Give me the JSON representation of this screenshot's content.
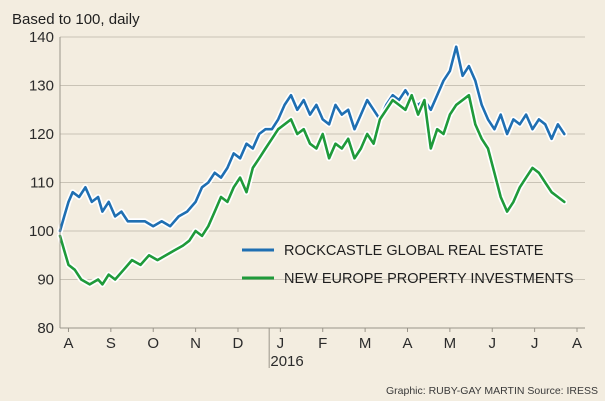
{
  "chart_data": {
    "type": "line",
    "subtitle": "Based to 100, daily",
    "yticks": [
      80,
      90,
      100,
      110,
      120,
      130,
      140
    ],
    "ylim": [
      80,
      140
    ],
    "xlim": [
      0,
      12.2
    ],
    "grid": true,
    "month_labels": [
      {
        "label": "A",
        "x": 0.2
      },
      {
        "label": "S",
        "x": 1.2
      },
      {
        "label": "O",
        "x": 2.2
      },
      {
        "label": "N",
        "x": 3.2
      },
      {
        "label": "D",
        "x": 4.2
      },
      {
        "label": "J",
        "x": 5.2
      },
      {
        "label": "F",
        "x": 6.2
      },
      {
        "label": "M",
        "x": 7.2
      },
      {
        "label": "A",
        "x": 8.2
      },
      {
        "label": "M",
        "x": 9.2
      },
      {
        "label": "J",
        "x": 10.2
      },
      {
        "label": "J",
        "x": 11.2
      },
      {
        "label": "A",
        "x": 12.2
      }
    ],
    "year_label": "2016",
    "legend": {
      "placement": "bottom-right"
    },
    "series": [
      {
        "name": "ROCKCASTLE GLOBAL REAL ESTATE",
        "color": "#1f6fb2",
        "points": [
          [
            0.0,
            100
          ],
          [
            0.1,
            103
          ],
          [
            0.2,
            106
          ],
          [
            0.3,
            108
          ],
          [
            0.45,
            107
          ],
          [
            0.6,
            109
          ],
          [
            0.75,
            106
          ],
          [
            0.9,
            107
          ],
          [
            1.0,
            104
          ],
          [
            1.15,
            106
          ],
          [
            1.3,
            103
          ],
          [
            1.45,
            104
          ],
          [
            1.6,
            102
          ],
          [
            1.8,
            102
          ],
          [
            2.0,
            102
          ],
          [
            2.2,
            101
          ],
          [
            2.4,
            102
          ],
          [
            2.6,
            101
          ],
          [
            2.8,
            103
          ],
          [
            3.0,
            104
          ],
          [
            3.2,
            106
          ],
          [
            3.35,
            109
          ],
          [
            3.5,
            110
          ],
          [
            3.65,
            112
          ],
          [
            3.8,
            111
          ],
          [
            3.95,
            113
          ],
          [
            4.1,
            116
          ],
          [
            4.25,
            115
          ],
          [
            4.4,
            118
          ],
          [
            4.55,
            117
          ],
          [
            4.7,
            120
          ],
          [
            4.85,
            121
          ],
          [
            5.0,
            121
          ],
          [
            5.15,
            123
          ],
          [
            5.3,
            126
          ],
          [
            5.45,
            128
          ],
          [
            5.6,
            125
          ],
          [
            5.75,
            127
          ],
          [
            5.9,
            124
          ],
          [
            6.05,
            126
          ],
          [
            6.2,
            123
          ],
          [
            6.35,
            122
          ],
          [
            6.5,
            126
          ],
          [
            6.65,
            124
          ],
          [
            6.8,
            125
          ],
          [
            6.95,
            121
          ],
          [
            7.1,
            124
          ],
          [
            7.25,
            127
          ],
          [
            7.4,
            125
          ],
          [
            7.55,
            123
          ],
          [
            7.7,
            126
          ],
          [
            7.85,
            128
          ],
          [
            8.0,
            127
          ],
          [
            8.15,
            129
          ],
          [
            8.3,
            127
          ],
          [
            8.45,
            126
          ],
          [
            8.6,
            127
          ],
          [
            8.75,
            125
          ],
          [
            8.9,
            128
          ],
          [
            9.05,
            131
          ],
          [
            9.2,
            133
          ],
          [
            9.35,
            138
          ],
          [
            9.5,
            132
          ],
          [
            9.65,
            134
          ],
          [
            9.8,
            131
          ],
          [
            9.95,
            126
          ],
          [
            10.1,
            123
          ],
          [
            10.25,
            121
          ],
          [
            10.4,
            124
          ],
          [
            10.55,
            120
          ],
          [
            10.7,
            123
          ],
          [
            10.85,
            122
          ],
          [
            11.0,
            124
          ],
          [
            11.15,
            121
          ],
          [
            11.3,
            123
          ],
          [
            11.45,
            122
          ],
          [
            11.6,
            119
          ],
          [
            11.75,
            122
          ],
          [
            11.9,
            120
          ]
        ]
      },
      {
        "name": "NEW EUROPE PROPERTY INVESTMENTS",
        "color": "#1f9a3a",
        "points": [
          [
            0.0,
            99
          ],
          [
            0.1,
            96
          ],
          [
            0.2,
            93
          ],
          [
            0.35,
            92
          ],
          [
            0.5,
            90
          ],
          [
            0.7,
            89
          ],
          [
            0.9,
            90
          ],
          [
            1.0,
            89
          ],
          [
            1.15,
            91
          ],
          [
            1.3,
            90
          ],
          [
            1.5,
            92
          ],
          [
            1.7,
            94
          ],
          [
            1.9,
            93
          ],
          [
            2.1,
            95
          ],
          [
            2.3,
            94
          ],
          [
            2.5,
            95
          ],
          [
            2.7,
            96
          ],
          [
            2.9,
            97
          ],
          [
            3.05,
            98
          ],
          [
            3.2,
            100
          ],
          [
            3.35,
            99
          ],
          [
            3.5,
            101
          ],
          [
            3.65,
            104
          ],
          [
            3.8,
            107
          ],
          [
            3.95,
            106
          ],
          [
            4.1,
            109
          ],
          [
            4.25,
            111
          ],
          [
            4.4,
            108
          ],
          [
            4.55,
            113
          ],
          [
            4.7,
            115
          ],
          [
            4.85,
            117
          ],
          [
            5.0,
            119
          ],
          [
            5.15,
            121
          ],
          [
            5.3,
            122
          ],
          [
            5.45,
            123
          ],
          [
            5.6,
            120
          ],
          [
            5.75,
            121
          ],
          [
            5.9,
            118
          ],
          [
            6.05,
            117
          ],
          [
            6.2,
            120
          ],
          [
            6.35,
            115
          ],
          [
            6.5,
            118
          ],
          [
            6.65,
            117
          ],
          [
            6.8,
            119
          ],
          [
            6.95,
            115
          ],
          [
            7.1,
            117
          ],
          [
            7.25,
            120
          ],
          [
            7.4,
            118
          ],
          [
            7.55,
            123
          ],
          [
            7.7,
            125
          ],
          [
            7.85,
            127
          ],
          [
            8.0,
            126
          ],
          [
            8.15,
            125
          ],
          [
            8.3,
            128
          ],
          [
            8.45,
            124
          ],
          [
            8.6,
            127
          ],
          [
            8.75,
            117
          ],
          [
            8.9,
            121
          ],
          [
            9.05,
            120
          ],
          [
            9.2,
            124
          ],
          [
            9.35,
            126
          ],
          [
            9.5,
            127
          ],
          [
            9.65,
            128
          ],
          [
            9.8,
            122
          ],
          [
            9.95,
            119
          ],
          [
            10.1,
            117
          ],
          [
            10.25,
            112
          ],
          [
            10.4,
            107
          ],
          [
            10.55,
            104
          ],
          [
            10.7,
            106
          ],
          [
            10.85,
            109
          ],
          [
            11.0,
            111
          ],
          [
            11.15,
            113
          ],
          [
            11.3,
            112
          ],
          [
            11.45,
            110
          ],
          [
            11.6,
            108
          ],
          [
            11.75,
            107
          ],
          [
            11.9,
            106
          ]
        ]
      }
    ]
  },
  "credit": "Graphic: RUBY-GAY MARTIN Source: IRESS"
}
